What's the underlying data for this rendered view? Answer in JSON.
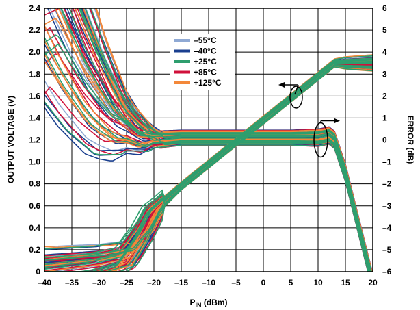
{
  "chart_data": {
    "type": "line",
    "xlabel_main": "P",
    "xlabel_sub": "IN",
    "xlabel_unit": " (dBm)",
    "ylabel": "OUTPUT VOLTAGE (V)",
    "y2label": "ERROR (dB)",
    "xlim": [
      -40,
      20
    ],
    "ylim": [
      0,
      2.4
    ],
    "y2lim": [
      -6,
      6
    ],
    "x_ticks": [
      "–40",
      "–35",
      "–30",
      "–25",
      "–20",
      "–15",
      "–10",
      "–5",
      "0",
      "5",
      "10",
      "15",
      "20"
    ],
    "y_ticks": [
      "0",
      "0.2",
      "0.4",
      "0.6",
      "0.8",
      "1.0",
      "1.2",
      "1.4",
      "1.6",
      "1.8",
      "2.0",
      "2.2",
      "2.4"
    ],
    "y2_ticks": [
      "–6",
      "–5",
      "–4",
      "–3",
      "–2",
      "–1",
      "0",
      "1",
      "2",
      "3",
      "4",
      "5",
      "6"
    ],
    "grid": true,
    "legend_position": "top-center",
    "series": [
      {
        "name": "–55°C",
        "color": "#8fa9d4"
      },
      {
        "name": "–40°C",
        "color": "#1a3f8f"
      },
      {
        "name": "+25°C",
        "color": "#2e9e6e"
      },
      {
        "name": "+85°C",
        "color": "#d0103a"
      },
      {
        "name": "+125°C",
        "color": "#f3883a"
      }
    ],
    "output_voltage_trend": {
      "x": [
        -40,
        -35,
        -30,
        -25,
        -22,
        -20,
        -15,
        -10,
        -5,
        0,
        5,
        10,
        12,
        13,
        15,
        20
      ],
      "y": [
        0.02,
        0.05,
        0.08,
        0.14,
        0.35,
        0.55,
        0.78,
        0.98,
        1.18,
        1.38,
        1.58,
        1.78,
        1.86,
        1.9,
        1.9,
        1.9
      ]
    },
    "output_voltage_spread": [
      0.22,
      0.2,
      0.18,
      0.15,
      0.1,
      0.06,
      0.04,
      0.04,
      0.04,
      0.04,
      0.04,
      0.04,
      0.04,
      0.04,
      0.06,
      0.08
    ],
    "error_trend": {
      "x": [
        -40,
        -35,
        -30,
        -25,
        -20,
        -15,
        -10,
        -5,
        0,
        5,
        10,
        12,
        13,
        15,
        20
      ],
      "y": [
        8.0,
        5.0,
        2.5,
        0.8,
        0.0,
        0.1,
        0.1,
        0.1,
        0.1,
        0.1,
        0.1,
        0.2,
        0.0,
        -1.5,
        -6.5
      ]
    },
    "error_spread": [
      6.0,
      4.5,
      3.0,
      1.2,
      0.4,
      0.35,
      0.35,
      0.35,
      0.35,
      0.35,
      0.4,
      0.4,
      0.4,
      0.4,
      0.4
    ],
    "annotations": [
      {
        "label": "output-voltage-arrow",
        "points_to": "left-axis",
        "at": [
          6,
          1.59
        ]
      },
      {
        "label": "error-arrow",
        "points_to": "right-axis",
        "at": [
          10.5,
          0
        ]
      }
    ]
  }
}
